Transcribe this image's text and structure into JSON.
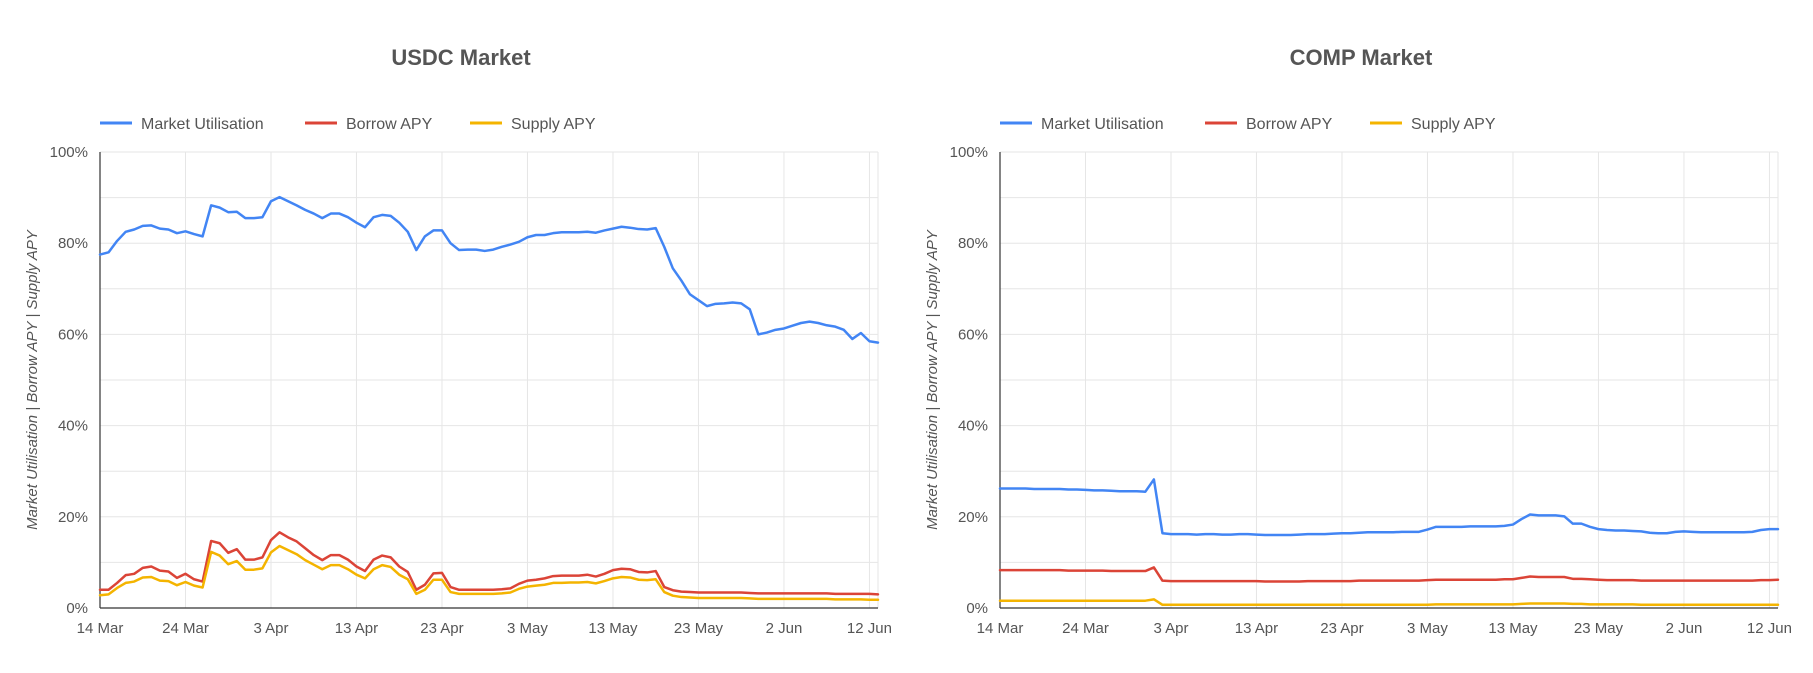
{
  "colors": {
    "utilisation": "#4285f4",
    "borrow": "#db4437",
    "supply": "#f4b400"
  },
  "chart_data": [
    {
      "type": "line",
      "title": "USDC Market",
      "ylabel": "Market Utilisation | Borrow APY | Supply APY",
      "ylim": [
        0,
        100
      ],
      "yticks": [
        "0%",
        "20%",
        "40%",
        "60%",
        "80%",
        "100%"
      ],
      "x_start": "14 Mar",
      "x_end": "13 Jun",
      "xticks": [
        "14 Mar",
        "24 Mar",
        "3 Apr",
        "13 Apr",
        "23 Apr",
        "3 May",
        "13 May",
        "23 May",
        "2 Jun",
        "12 Jun"
      ],
      "legend_position": "top-left",
      "grid": true,
      "series": [
        {
          "name": "Market Utilisation",
          "color_key": "utilisation",
          "values": [
            77.5,
            78,
            80.5,
            82.5,
            83,
            83.8,
            83.9,
            83.2,
            83,
            82.2,
            82.6,
            82,
            81.5,
            88.3,
            87.8,
            86.8,
            86.9,
            85.5,
            85.5,
            85.7,
            89.2,
            90.1,
            89.2,
            88.3,
            87.3,
            86.5,
            85.5,
            86.5,
            86.5,
            85.7,
            84.5,
            83.5,
            85.7,
            86.2,
            86,
            84.5,
            82.5,
            78.5,
            81.5,
            82.8,
            82.8,
            80,
            78.5,
            78.6,
            78.6,
            78.3,
            78.6,
            79.2,
            79.7,
            80.3,
            81.3,
            81.8,
            81.8,
            82.2,
            82.4,
            82.4,
            82.4,
            82.5,
            82.3,
            82.8,
            83.2,
            83.6,
            83.4,
            83.1,
            83,
            83.3,
            79.2,
            74.5,
            71.8,
            68.8,
            67.5,
            66.2,
            66.7,
            66.8,
            67,
            66.8,
            65.5,
            60,
            60.4,
            61,
            61.3,
            61.9,
            62.5,
            62.8,
            62.5,
            62,
            61.7,
            61,
            59,
            60.3,
            58.5,
            58.2
          ]
        },
        {
          "name": "Borrow APY",
          "color_key": "borrow",
          "values": [
            4,
            4,
            5.5,
            7.2,
            7.5,
            8.8,
            9.1,
            8.2,
            8,
            6.6,
            7.5,
            6.3,
            5.8,
            14.7,
            14.2,
            12.1,
            12.9,
            10.6,
            10.6,
            11.1,
            14.9,
            16.6,
            15.5,
            14.6,
            13.1,
            11.6,
            10.5,
            11.6,
            11.6,
            10.6,
            9.1,
            8.1,
            10.6,
            11.5,
            11.1,
            9.1,
            7.9,
            4,
            5.1,
            7.6,
            7.7,
            4.6,
            4,
            4,
            4,
            4,
            4,
            4.1,
            4.3,
            5.3,
            6,
            6.2,
            6.5,
            7,
            7.1,
            7.1,
            7.1,
            7.3,
            6.9,
            7.5,
            8.3,
            8.6,
            8.5,
            7.9,
            7.8,
            8.1,
            4.6,
            3.9,
            3.6,
            3.5,
            3.4,
            3.4,
            3.4,
            3.4,
            3.4,
            3.4,
            3.3,
            3.2,
            3.2,
            3.2,
            3.2,
            3.2,
            3.2,
            3.2,
            3.2,
            3.2,
            3.1,
            3.1,
            3.1,
            3.1,
            3.1,
            3
          ]
        },
        {
          "name": "Supply APY",
          "color_key": "supply",
          "values": [
            2.8,
            3,
            4.4,
            5.5,
            5.8,
            6.7,
            6.8,
            6,
            5.9,
            5,
            5.7,
            4.9,
            4.5,
            12.3,
            11.5,
            9.6,
            10.3,
            8.4,
            8.4,
            8.7,
            12.2,
            13.6,
            12.7,
            11.8,
            10.5,
            9.5,
            8.5,
            9.4,
            9.4,
            8.5,
            7.3,
            6.5,
            8.5,
            9.4,
            9,
            7.3,
            6.3,
            3.1,
            4,
            6.2,
            6.2,
            3.5,
            3.1,
            3.1,
            3.1,
            3.1,
            3.1,
            3.2,
            3.4,
            4.2,
            4.7,
            4.9,
            5.1,
            5.5,
            5.5,
            5.6,
            5.6,
            5.7,
            5.4,
            5.9,
            6.5,
            6.8,
            6.7,
            6.2,
            6.1,
            6.3,
            3.5,
            2.7,
            2.4,
            2.3,
            2.2,
            2.2,
            2.2,
            2.2,
            2.2,
            2.2,
            2.1,
            2,
            2,
            2,
            2,
            2,
            2,
            2,
            2,
            2,
            1.9,
            1.9,
            1.9,
            1.9,
            1.8,
            1.8
          ]
        }
      ]
    },
    {
      "type": "line",
      "title": "COMP Market",
      "ylabel": "Market Utilisation | Borrow APY | Supply APY",
      "ylim": [
        0,
        100
      ],
      "yticks": [
        "0%",
        "20%",
        "40%",
        "60%",
        "80%",
        "100%"
      ],
      "x_start": "14 Mar",
      "x_end": "13 Jun",
      "xticks": [
        "14 Mar",
        "24 Mar",
        "3 Apr",
        "13 Apr",
        "23 Apr",
        "3 May",
        "13 May",
        "23 May",
        "2 Jun",
        "12 Jun"
      ],
      "legend_position": "top-left",
      "grid": true,
      "series": [
        {
          "name": "Market Utilisation",
          "color_key": "utilisation",
          "values": [
            26.2,
            26.2,
            26.2,
            26.2,
            26.1,
            26.1,
            26.1,
            26.1,
            26,
            26,
            25.9,
            25.8,
            25.8,
            25.7,
            25.6,
            25.6,
            25.6,
            25.5,
            28.2,
            16.4,
            16.2,
            16.2,
            16.2,
            16.1,
            16.2,
            16.2,
            16.1,
            16.1,
            16.2,
            16.2,
            16.1,
            16,
            16,
            16,
            16,
            16.1,
            16.2,
            16.2,
            16.2,
            16.3,
            16.4,
            16.4,
            16.5,
            16.6,
            16.6,
            16.6,
            16.6,
            16.7,
            16.7,
            16.7,
            17.2,
            17.8,
            17.8,
            17.8,
            17.8,
            17.9,
            17.9,
            17.9,
            17.9,
            18,
            18.3,
            19.5,
            20.5,
            20.3,
            20.3,
            20.3,
            20.1,
            18.5,
            18.5,
            17.8,
            17.3,
            17.1,
            17,
            17,
            16.9,
            16.8,
            16.5,
            16.4,
            16.4,
            16.7,
            16.8,
            16.7,
            16.6,
            16.6,
            16.6,
            16.6,
            16.6,
            16.6,
            16.7,
            17.1,
            17.3,
            17.3
          ]
        },
        {
          "name": "Borrow APY",
          "color_key": "borrow",
          "values": [
            8.3,
            8.3,
            8.3,
            8.3,
            8.3,
            8.3,
            8.3,
            8.3,
            8.2,
            8.2,
            8.2,
            8.2,
            8.2,
            8.1,
            8.1,
            8.1,
            8.1,
            8.1,
            8.9,
            6,
            5.9,
            5.9,
            5.9,
            5.9,
            5.9,
            5.9,
            5.9,
            5.9,
            5.9,
            5.9,
            5.9,
            5.8,
            5.8,
            5.8,
            5.8,
            5.8,
            5.9,
            5.9,
            5.9,
            5.9,
            5.9,
            5.9,
            6,
            6,
            6,
            6,
            6,
            6,
            6,
            6,
            6.1,
            6.2,
            6.2,
            6.2,
            6.2,
            6.2,
            6.2,
            6.2,
            6.2,
            6.3,
            6.3,
            6.6,
            6.9,
            6.8,
            6.8,
            6.8,
            6.8,
            6.4,
            6.4,
            6.3,
            6.2,
            6.1,
            6.1,
            6.1,
            6.1,
            6,
            6,
            6,
            6,
            6,
            6,
            6,
            6,
            6,
            6,
            6,
            6,
            6,
            6,
            6.1,
            6.1,
            6.2
          ]
        },
        {
          "name": "Supply APY",
          "color_key": "supply",
          "values": [
            1.6,
            1.6,
            1.6,
            1.6,
            1.6,
            1.6,
            1.6,
            1.6,
            1.6,
            1.6,
            1.6,
            1.6,
            1.6,
            1.6,
            1.6,
            1.6,
            1.6,
            1.6,
            1.9,
            0.7,
            0.7,
            0.7,
            0.7,
            0.7,
            0.7,
            0.7,
            0.7,
            0.7,
            0.7,
            0.7,
            0.7,
            0.7,
            0.7,
            0.7,
            0.7,
            0.7,
            0.7,
            0.7,
            0.7,
            0.7,
            0.7,
            0.7,
            0.7,
            0.7,
            0.7,
            0.7,
            0.7,
            0.7,
            0.7,
            0.7,
            0.7,
            0.8,
            0.8,
            0.8,
            0.8,
            0.8,
            0.8,
            0.8,
            0.8,
            0.8,
            0.8,
            0.9,
            1,
            1,
            1,
            1,
            1,
            0.9,
            0.9,
            0.8,
            0.8,
            0.8,
            0.8,
            0.8,
            0.8,
            0.7,
            0.7,
            0.7,
            0.7,
            0.7,
            0.7,
            0.7,
            0.7,
            0.7,
            0.7,
            0.7,
            0.7,
            0.7,
            0.7,
            0.7,
            0.7,
            0.7
          ]
        }
      ]
    }
  ]
}
